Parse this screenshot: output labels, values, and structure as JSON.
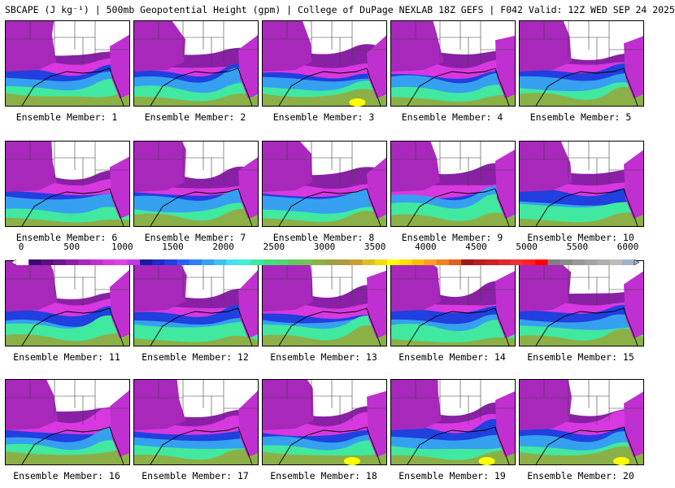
{
  "title": "SBCAPE (J kg⁻¹) | 500mb Geopotential Height (gpm) | College of DuPage NEXLAB 18Z GEFS | F042 Valid: 12Z WED SEP 24 2025",
  "member_label_prefix": "Ensemble Member:",
  "members": [
    {
      "label": "Ensemble Member: 1"
    },
    {
      "label": "Ensemble Member: 2"
    },
    {
      "label": "Ensemble Member: 3"
    },
    {
      "label": "Ensemble Member: 4"
    },
    {
      "label": "Ensemble Member: 5"
    },
    {
      "label": "Ensemble Member: 6"
    },
    {
      "label": "Ensemble Member: 7"
    },
    {
      "label": "Ensemble Member: 8"
    },
    {
      "label": "Ensemble Member: 9"
    },
    {
      "label": "Ensemble Member: 10"
    },
    {
      "label": "Ensemble Member: 11"
    },
    {
      "label": "Ensemble Member: 12"
    },
    {
      "label": "Ensemble Member: 13"
    },
    {
      "label": "Ensemble Member: 14"
    },
    {
      "label": "Ensemble Member: 15"
    },
    {
      "label": "Ensemble Member: 16"
    },
    {
      "label": "Ensemble Member: 17"
    },
    {
      "label": "Ensemble Member: 18"
    },
    {
      "label": "Ensemble Member: 19"
    },
    {
      "label": "Ensemble Member: 20"
    }
  ],
  "colorbar": {
    "ticks": [
      "0",
      "500",
      "1000",
      "1500",
      "2000",
      "2500",
      "3000",
      "3500",
      "4000",
      "4500",
      "5000",
      "5500",
      "6000"
    ],
    "colors": [
      "#ffffff",
      "#3a0a6e",
      "#56107e",
      "#6d1890",
      "#8a20a6",
      "#a828bc",
      "#c030d0",
      "#d838e0",
      "#e040e8",
      "#c038e8",
      "#1a1aa0",
      "#1c2cc8",
      "#2040e0",
      "#2a60f0",
      "#3080f0",
      "#36a0f0",
      "#40c0f0",
      "#46e0f0",
      "#40f0d0",
      "#40e8a0",
      "#40e080",
      "#50d870",
      "#60c860",
      "#78c050",
      "#8cb048",
      "#a0a040",
      "#b49840",
      "#c8a030",
      "#e0c020",
      "#f0e000",
      "#ffff00",
      "#ffe000",
      "#ffc000",
      "#ffa020",
      "#f08020",
      "#e06020",
      "#a01818",
      "#b82020",
      "#d02020",
      "#e02828",
      "#f03030",
      "#ff2020",
      "#ff0000",
      "#808080",
      "#8c8c8c",
      "#989898",
      "#a4a4a4",
      "#b0b0b0",
      "#bcbcbc",
      "#a0b4c8"
    ]
  }
}
